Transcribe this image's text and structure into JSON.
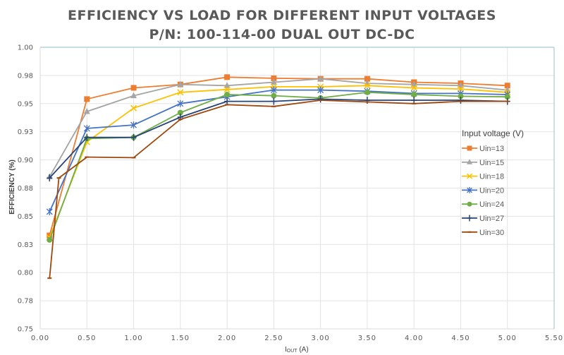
{
  "chart_data": {
    "type": "line",
    "title": "EFFICIENCY VS LOAD FOR DIFFERENT INPUT VOLTAGES",
    "subtitle": "P/N: 100-114-00 DUAL OUT DC-DC",
    "xlabel_main": "I",
    "xlabel_sub": "OUT",
    "xlabel_unit": " (A)",
    "ylabel": "EFFICIENCY (%)",
    "xlim": [
      0,
      5.5
    ],
    "ylim": [
      0.75,
      1.0
    ],
    "x_ticks": [
      0,
      0.5,
      1.0,
      1.5,
      2.0,
      2.5,
      3.0,
      3.5,
      4.0,
      4.5,
      5.0,
      5.5
    ],
    "x_tick_labels": [
      "0.00",
      "0.50",
      "1.00",
      "1.50",
      "2.00",
      "2.50",
      "3.00",
      "3.50",
      "4.00",
      "4.50",
      "5.00",
      "5.50"
    ],
    "y_ticks": [
      0.75,
      0.775,
      0.8,
      0.825,
      0.85,
      0.875,
      0.9,
      0.925,
      0.95,
      0.975,
      1.0
    ],
    "y_tick_labels": [
      "0.75",
      "0.78",
      "0.80",
      "0.83",
      "0.85",
      "0.88",
      "0.90",
      "0.93",
      "0.95",
      "0.98",
      "1.00"
    ],
    "grid": true,
    "legend_title": "Input voltage (V)",
    "legend_position": "right",
    "series": [
      {
        "name": "Uin=13",
        "color": "#ED7D31",
        "marker": "square",
        "x": [
          0.1,
          0.5,
          1.0,
          1.5,
          2.0,
          2.5,
          3.0,
          3.5,
          4.0,
          4.5,
          5.0
        ],
        "y": [
          0.833,
          0.954,
          0.964,
          0.967,
          0.9735,
          0.9725,
          0.972,
          0.972,
          0.969,
          0.968,
          0.966
        ]
      },
      {
        "name": "Uin=15",
        "color": "#A5A5A5",
        "marker": "triangle",
        "x": [
          0.1,
          0.5,
          1.0,
          1.5,
          2.0,
          2.5,
          3.0,
          3.5,
          4.0,
          4.5,
          5.0
        ],
        "y": [
          0.885,
          0.943,
          0.957,
          0.967,
          0.966,
          0.969,
          0.972,
          0.968,
          0.967,
          0.966,
          0.962
        ]
      },
      {
        "name": "Uin=18",
        "color": "#FFC000",
        "marker": "x",
        "x": [
          0.1,
          0.5,
          1.0,
          1.5,
          2.0,
          2.5,
          3.0,
          3.5,
          4.0,
          4.5,
          5.0
        ],
        "y": [
          0.831,
          0.916,
          0.946,
          0.96,
          0.9625,
          0.965,
          0.965,
          0.966,
          0.964,
          0.963,
          0.96
        ]
      },
      {
        "name": "Uin=20",
        "color": "#4472C4",
        "marker": "star",
        "x": [
          0.1,
          0.5,
          1.0,
          1.5,
          2.0,
          2.5,
          3.0,
          3.5,
          4.0,
          4.5,
          5.0
        ],
        "y": [
          0.854,
          0.928,
          0.931,
          0.95,
          0.956,
          0.962,
          0.962,
          0.961,
          0.959,
          0.959,
          0.958
        ]
      },
      {
        "name": "Uin=24",
        "color": "#70AD47",
        "marker": "circle",
        "x": [
          0.1,
          0.5,
          1.0,
          1.5,
          2.0,
          2.5,
          3.0,
          3.5,
          4.0,
          4.5,
          5.0
        ],
        "y": [
          0.829,
          0.919,
          0.92,
          0.942,
          0.958,
          0.957,
          0.955,
          0.96,
          0.958,
          0.9565,
          0.956
        ]
      },
      {
        "name": "Uin=27",
        "color": "#264478",
        "marker": "plus",
        "x": [
          0.1,
          0.5,
          1.0,
          1.5,
          2.0,
          2.5,
          3.0,
          3.5,
          4.0,
          4.5,
          5.0
        ],
        "y": [
          0.884,
          0.92,
          0.92,
          0.938,
          0.952,
          0.952,
          0.954,
          0.953,
          0.953,
          0.953,
          0.952
        ]
      },
      {
        "name": "Uin=30",
        "color": "#9E480E",
        "marker": "dash",
        "x": [
          0.1,
          0.2,
          0.5,
          1.0,
          1.5,
          2.0,
          2.5,
          3.0,
          3.5,
          4.0,
          4.5,
          5.0
        ],
        "y": [
          0.795,
          0.884,
          0.9025,
          0.902,
          0.936,
          0.949,
          0.9475,
          0.953,
          0.9515,
          0.95,
          0.952,
          0.952
        ]
      }
    ]
  }
}
